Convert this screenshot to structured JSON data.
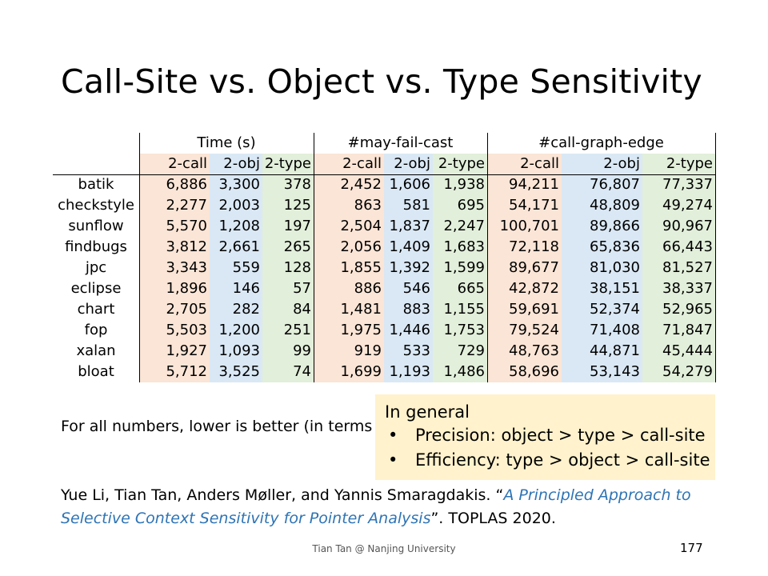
{
  "slide": {
    "title": "Call-Site vs. Object vs. Type Sensitivity",
    "footer": "Tian Tan @ Nanjing University",
    "page_number": "177"
  },
  "table": {
    "groups": [
      "Time (s)",
      "#may-fail-cast",
      "#call-graph-edge"
    ],
    "subheaders": [
      "2-call",
      "2-obj",
      "2-type"
    ],
    "rows": [
      {
        "name": "batik",
        "time": [
          "6,886",
          "3,300",
          "378"
        ],
        "cast": [
          "2,452",
          "1,606",
          "1,938"
        ],
        "edge": [
          "94,211",
          "76,807",
          "77,337"
        ]
      },
      {
        "name": "checkstyle",
        "time": [
          "2,277",
          "2,003",
          "125"
        ],
        "cast": [
          "863",
          "581",
          "695"
        ],
        "edge": [
          "54,171",
          "48,809",
          "49,274"
        ]
      },
      {
        "name": "sunflow",
        "time": [
          "5,570",
          "1,208",
          "197"
        ],
        "cast": [
          "2,504",
          "1,837",
          "2,247"
        ],
        "edge": [
          "100,701",
          "89,866",
          "90,967"
        ]
      },
      {
        "name": "findbugs",
        "time": [
          "3,812",
          "2,661",
          "265"
        ],
        "cast": [
          "2,056",
          "1,409",
          "1,683"
        ],
        "edge": [
          "72,118",
          "65,836",
          "66,443"
        ]
      },
      {
        "name": "jpc",
        "time": [
          "3,343",
          "559",
          "128"
        ],
        "cast": [
          "1,855",
          "1,392",
          "1,599"
        ],
        "edge": [
          "89,677",
          "81,030",
          "81,527"
        ]
      },
      {
        "name": "eclipse",
        "time": [
          "1,896",
          "146",
          "57"
        ],
        "cast": [
          "886",
          "546",
          "665"
        ],
        "edge": [
          "42,872",
          "38,151",
          "38,337"
        ]
      },
      {
        "name": "chart",
        "time": [
          "2,705",
          "282",
          "84"
        ],
        "cast": [
          "1,481",
          "883",
          "1,155"
        ],
        "edge": [
          "59,691",
          "52,374",
          "52,965"
        ]
      },
      {
        "name": "fop",
        "time": [
          "5,503",
          "1,200",
          "251"
        ],
        "cast": [
          "1,975",
          "1,446",
          "1,753"
        ],
        "edge": [
          "79,524",
          "71,408",
          "71,847"
        ]
      },
      {
        "name": "xalan",
        "time": [
          "1,927",
          "1,093",
          "99"
        ],
        "cast": [
          "919",
          "533",
          "729"
        ],
        "edge": [
          "48,763",
          "44,871",
          "45,444"
        ]
      },
      {
        "name": "bloat",
        "time": [
          "5,712",
          "3,525",
          "74"
        ],
        "cast": [
          "1,699",
          "1,193",
          "1,486"
        ],
        "edge": [
          "58,696",
          "53,143",
          "54,279"
        ]
      }
    ]
  },
  "note": "For all numbers, lower is better (in terms",
  "callout": {
    "heading": "In general",
    "bullet": "•",
    "items": [
      "Precision: object > type > call-site",
      "Efficiency: type > object > call-site"
    ]
  },
  "reference": {
    "authors": "Yue Li, Tian Tan, Anders Møller, and Yannis Smaragdakis. “",
    "link_title": "A Principled Approach to Selective Context Sensitivity for Pointer Analysis",
    "tail": "”. TOPLAS 2020."
  },
  "colors": {
    "call": "#fbe5d6",
    "obj": "#dae8f5",
    "type": "#e2efda",
    "callout_bg": "#fff2cc",
    "link": "#2e74b5"
  }
}
